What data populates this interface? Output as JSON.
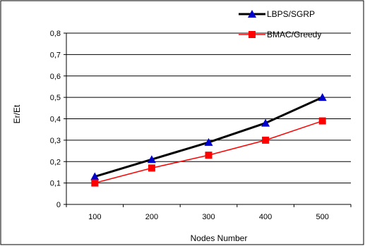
{
  "chart_data": {
    "type": "line",
    "xlabel": "Nodes Number",
    "ylabel": "Er/Et",
    "ylim": [
      0,
      0.8
    ],
    "yticks": [
      "0",
      "0,1",
      "0,2",
      "0,3",
      "0,4",
      "0,5",
      "0,6",
      "0,7",
      "0,8"
    ],
    "categories": [
      "100",
      "200",
      "300",
      "400",
      "500"
    ],
    "grid": true,
    "legend_position": "top-right",
    "series": [
      {
        "name": "LBPS/SGRP",
        "values": [
          0.13,
          0.21,
          0.29,
          0.38,
          0.5
        ],
        "color": "#000000",
        "marker_color": "#0000cc",
        "marker": "triangle"
      },
      {
        "name": "BMAC/Greedy",
        "values": [
          0.1,
          0.17,
          0.23,
          0.3,
          0.39
        ],
        "color": "#ff0000",
        "marker_color": "#ff0000",
        "marker": "square"
      }
    ]
  }
}
